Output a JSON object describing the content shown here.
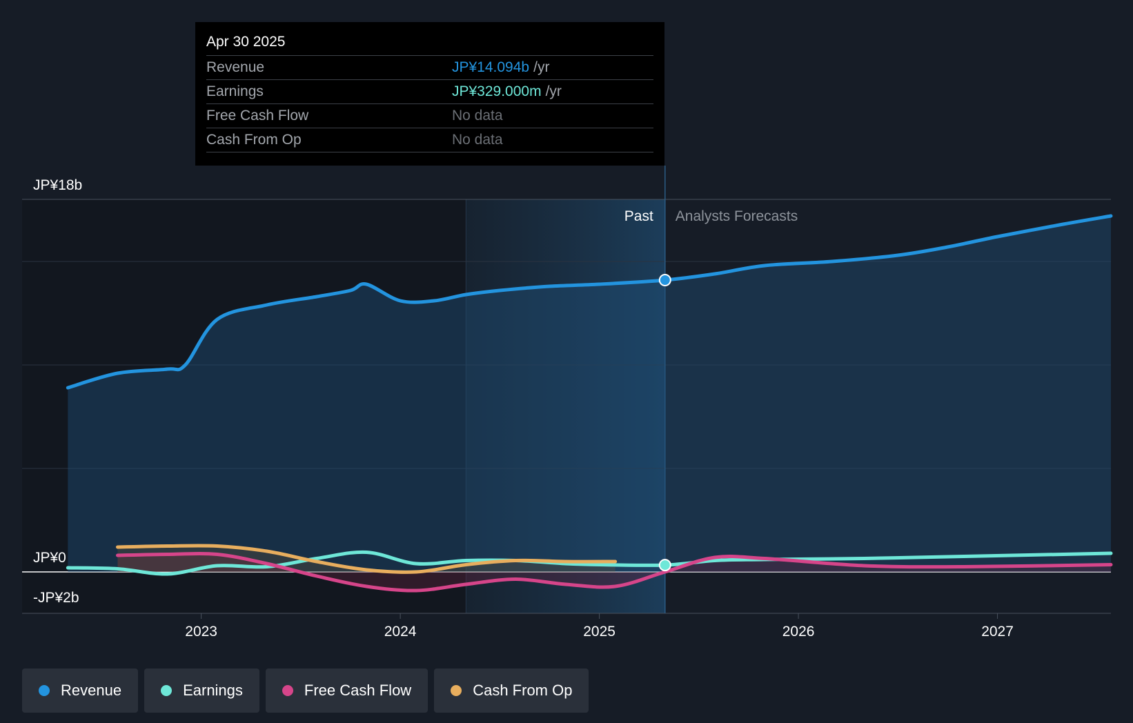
{
  "tooltip": {
    "date": "Apr 30 2025",
    "rows": [
      {
        "label": "Revenue",
        "value": "JP¥14.094b",
        "unit": "/yr",
        "color": "#2394df"
      },
      {
        "label": "Earnings",
        "value": "JP¥329.000m",
        "unit": "/yr",
        "color": "#6ee7d8"
      },
      {
        "label": "Free Cash Flow",
        "value": "No data",
        "unit": "",
        "color": "#6b6f75"
      },
      {
        "label": "Cash From Op",
        "value": "No data",
        "unit": "",
        "color": "#6b6f75"
      }
    ]
  },
  "legend": [
    {
      "label": "Revenue",
      "color": "#2394df"
    },
    {
      "label": "Earnings",
      "color": "#6ee7d8"
    },
    {
      "label": "Free Cash Flow",
      "color": "#d6458a"
    },
    {
      "label": "Cash From Op",
      "color": "#e8ae5e"
    }
  ],
  "chart_data": {
    "type": "line",
    "currency": "JP¥",
    "y_unit": "billions",
    "ylim": [
      -2,
      18
    ],
    "y_tick_labels": [
      {
        "value": 18,
        "label": "JP¥18b"
      },
      {
        "value": 0,
        "label": "JP¥0"
      },
      {
        "value": -2,
        "label": "-JP¥2b"
      }
    ],
    "gridlines": [
      18,
      15,
      10,
      5,
      0,
      -2
    ],
    "xlim": [
      2022.1,
      2027.57
    ],
    "x_tick_labels": [
      "2023",
      "2024",
      "2025",
      "2026",
      "2027"
    ],
    "x_ticks": [
      2023,
      2024,
      2025,
      2026,
      2027
    ],
    "divider_x": 2025.33,
    "highlight_start_x": 2024.33,
    "past_label": "Past",
    "forecast_label": "Analysts Forecasts",
    "series": [
      {
        "name": "Revenue",
        "color": "#2394df",
        "points": [
          [
            2022.33,
            8.9
          ],
          [
            2022.58,
            9.6
          ],
          [
            2022.83,
            9.8
          ],
          [
            2022.92,
            10.0
          ],
          [
            2023.08,
            12.2
          ],
          [
            2023.33,
            12.9
          ],
          [
            2023.58,
            13.3
          ],
          [
            2023.75,
            13.6
          ],
          [
            2023.83,
            13.9
          ],
          [
            2024.0,
            13.1
          ],
          [
            2024.17,
            13.1
          ],
          [
            2024.33,
            13.4
          ],
          [
            2024.5,
            13.6
          ],
          [
            2024.75,
            13.8
          ],
          [
            2025.0,
            13.9
          ],
          [
            2025.33,
            14.1
          ],
          [
            2025.58,
            14.4
          ],
          [
            2025.83,
            14.8
          ],
          [
            2026.17,
            15.0
          ],
          [
            2026.5,
            15.3
          ],
          [
            2026.75,
            15.7
          ],
          [
            2027.0,
            16.2
          ],
          [
            2027.33,
            16.8
          ],
          [
            2027.57,
            17.2
          ]
        ]
      },
      {
        "name": "Earnings",
        "color": "#6ee7d8",
        "points": [
          [
            2022.33,
            0.2
          ],
          [
            2022.58,
            0.15
          ],
          [
            2022.83,
            -0.1
          ],
          [
            2023.08,
            0.3
          ],
          [
            2023.33,
            0.25
          ],
          [
            2023.58,
            0.65
          ],
          [
            2023.83,
            0.95
          ],
          [
            2024.08,
            0.4
          ],
          [
            2024.33,
            0.55
          ],
          [
            2024.58,
            0.55
          ],
          [
            2024.83,
            0.4
          ],
          [
            2025.0,
            0.35
          ],
          [
            2025.33,
            0.33
          ],
          [
            2025.58,
            0.55
          ],
          [
            2025.83,
            0.6
          ],
          [
            2026.33,
            0.65
          ],
          [
            2026.83,
            0.75
          ],
          [
            2027.57,
            0.9
          ]
        ]
      },
      {
        "name": "Free Cash Flow",
        "color": "#d6458a",
        "points": [
          [
            2022.58,
            0.8
          ],
          [
            2022.83,
            0.85
          ],
          [
            2023.08,
            0.85
          ],
          [
            2023.33,
            0.4
          ],
          [
            2023.58,
            -0.2
          ],
          [
            2023.83,
            -0.7
          ],
          [
            2024.08,
            -0.9
          ],
          [
            2024.33,
            -0.6
          ],
          [
            2024.58,
            -0.35
          ],
          [
            2024.83,
            -0.6
          ],
          [
            2025.08,
            -0.7
          ],
          [
            2025.33,
            0.0
          ],
          [
            2025.58,
            0.7
          ],
          [
            2025.83,
            0.65
          ],
          [
            2026.33,
            0.3
          ],
          [
            2026.83,
            0.25
          ],
          [
            2027.57,
            0.35
          ]
        ]
      },
      {
        "name": "Cash From Op",
        "color": "#e8ae5e",
        "points": [
          [
            2022.58,
            1.2
          ],
          [
            2022.83,
            1.25
          ],
          [
            2023.08,
            1.25
          ],
          [
            2023.33,
            1.0
          ],
          [
            2023.58,
            0.5
          ],
          [
            2023.83,
            0.1
          ],
          [
            2024.08,
            0.0
          ],
          [
            2024.33,
            0.35
          ],
          [
            2024.58,
            0.55
          ],
          [
            2024.83,
            0.5
          ],
          [
            2025.08,
            0.5
          ]
        ]
      }
    ],
    "highlight_points": [
      {
        "series": "Revenue",
        "x": 2025.33,
        "y": 14.1
      },
      {
        "series": "Earnings",
        "x": 2025.33,
        "y": 0.33
      }
    ]
  }
}
